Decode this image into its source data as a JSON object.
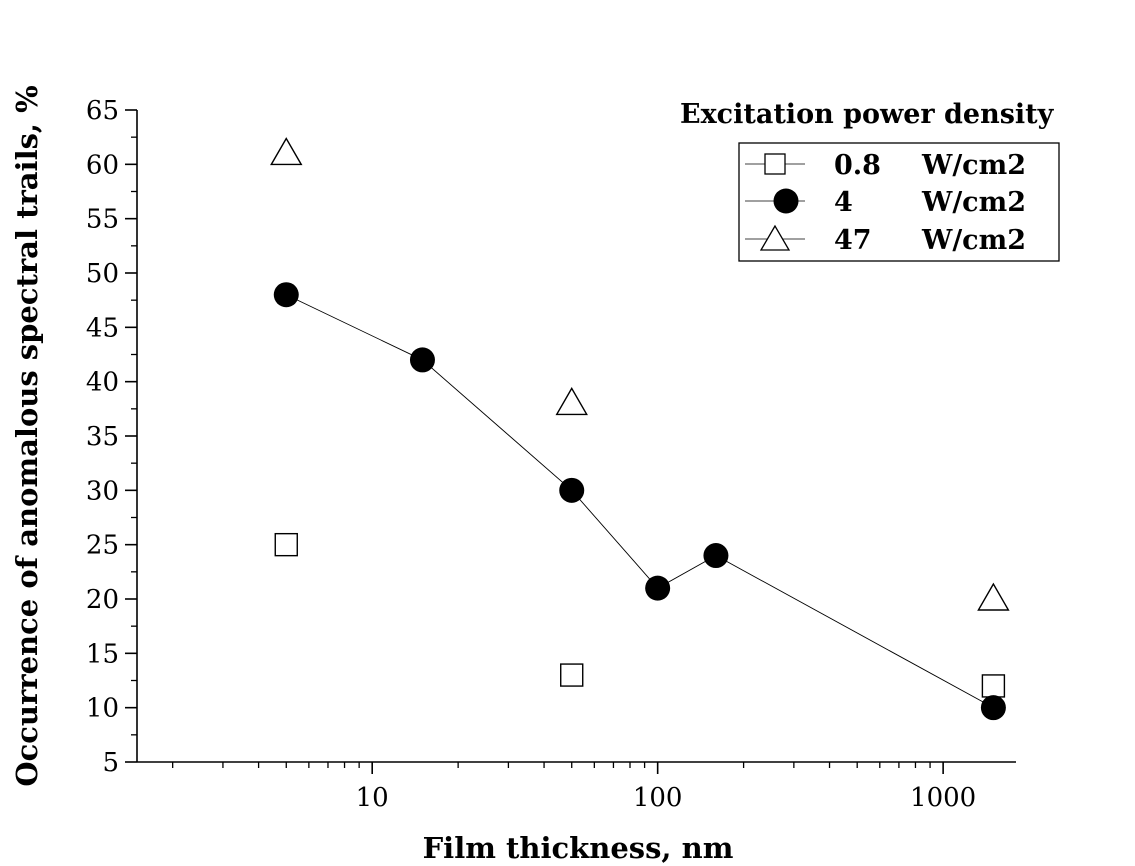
{
  "chart_data": {
    "type": "scatter",
    "title": "",
    "xlabel": "Film thickness, nm",
    "ylabel": "Occurrence of anomalous spectral trails, %",
    "x_scale": "log",
    "xlim": [
      1.5,
      1800
    ],
    "ylim": [
      5,
      65
    ],
    "x_ticks": [
      10,
      100,
      1000
    ],
    "x_tick_labels": [
      "10",
      "100",
      "1000"
    ],
    "y_ticks": [
      5,
      10,
      15,
      20,
      25,
      30,
      35,
      40,
      45,
      50,
      55,
      60,
      65
    ],
    "y_tick_labels": [
      "5",
      "10",
      "15",
      "20",
      "25",
      "30",
      "35",
      "40",
      "45",
      "50",
      "55",
      "60",
      "65"
    ],
    "grid": false,
    "legend": {
      "title": "Excitation power density",
      "placement": "top-right",
      "entries": [
        {
          "value": "0.8",
          "unit": "W/cm2"
        },
        {
          "value": "4",
          "unit": "W/cm2"
        },
        {
          "value": "47",
          "unit": "W/cm2"
        }
      ]
    },
    "series": [
      {
        "name": "0.8 W/cm2",
        "marker": "open-square",
        "connected": false,
        "color": "#000000",
        "points": [
          [
            5,
            25
          ],
          [
            50,
            13
          ],
          [
            1500,
            12
          ]
        ]
      },
      {
        "name": "4 W/cm2",
        "marker": "filled-circle",
        "connected": true,
        "color": "#000000",
        "points": [
          [
            5,
            48
          ],
          [
            15,
            42
          ],
          [
            50,
            30
          ],
          [
            100,
            21
          ],
          [
            160,
            24
          ],
          [
            1500,
            10
          ]
        ]
      },
      {
        "name": "47 W/cm2",
        "marker": "open-triangle",
        "connected": false,
        "color": "#000000",
        "points": [
          [
            5,
            61
          ],
          [
            50,
            38
          ],
          [
            1500,
            20
          ]
        ]
      }
    ]
  }
}
